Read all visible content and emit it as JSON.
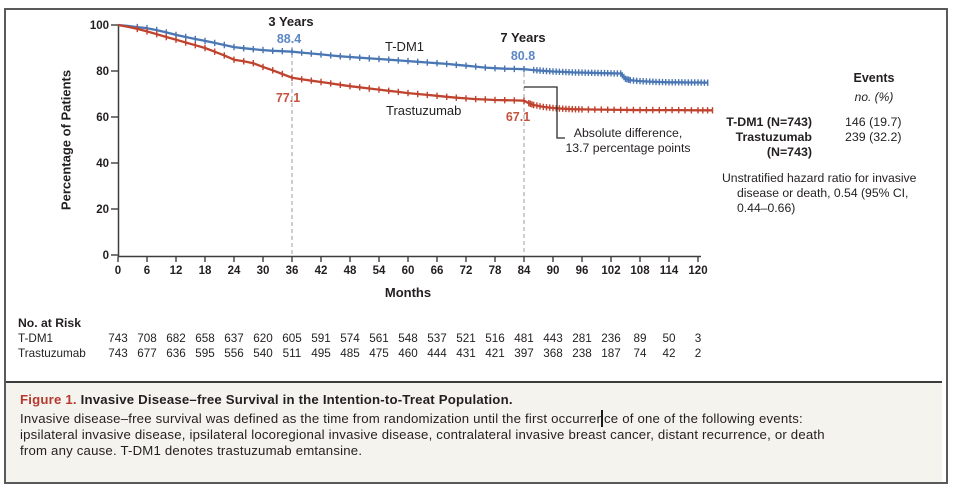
{
  "colors": {
    "curve_blue": "#4a77b4",
    "curve_red": "#c0432f",
    "label_blue": "#5d87c4",
    "label_red": "#c5523e",
    "dashed": "#b5b5b5",
    "axis": "#3d3d3f",
    "caption_label": "#b5392f",
    "caption_bg": "#f4f3ee"
  },
  "chart_data": {
    "type": "line",
    "subtype": "kaplan-meier-survival",
    "xlabel": "Months",
    "ylabel": "Percentage of Patients",
    "xlim": [
      0,
      120
    ],
    "ylim": [
      0,
      100
    ],
    "x_ticks": [
      0,
      6,
      12,
      18,
      24,
      30,
      36,
      42,
      48,
      54,
      60,
      66,
      72,
      78,
      84,
      90,
      96,
      102,
      108,
      114,
      120
    ],
    "y_ticks": [
      100,
      80,
      60,
      40,
      20,
      0
    ],
    "grid": false,
    "series": [
      {
        "name": "T-DM1",
        "color": "#4a77b4",
        "points": [
          [
            0,
            100
          ],
          [
            2,
            99.6
          ],
          [
            4,
            99.1
          ],
          [
            6,
            98.6
          ],
          [
            8,
            97.8
          ],
          [
            10,
            96.8
          ],
          [
            12,
            95.7
          ],
          [
            14,
            94.8
          ],
          [
            16,
            93.9
          ],
          [
            18,
            93.1
          ],
          [
            20,
            92.2
          ],
          [
            22,
            91.3
          ],
          [
            24,
            90.4
          ],
          [
            26,
            89.9
          ],
          [
            28,
            89.5
          ],
          [
            30,
            89.1
          ],
          [
            32,
            88.8
          ],
          [
            34,
            88.6
          ],
          [
            36,
            88.4
          ],
          [
            38,
            88.0
          ],
          [
            40,
            87.6
          ],
          [
            42,
            87.2
          ],
          [
            44,
            86.8
          ],
          [
            46,
            86.4
          ],
          [
            48,
            86.1
          ],
          [
            50,
            85.8
          ],
          [
            52,
            85.5
          ],
          [
            54,
            85.2
          ],
          [
            56,
            84.9
          ],
          [
            58,
            84.6
          ],
          [
            60,
            84.3
          ],
          [
            62,
            84.0
          ],
          [
            64,
            83.7
          ],
          [
            66,
            83.4
          ],
          [
            68,
            83.1
          ],
          [
            70,
            82.7
          ],
          [
            72,
            82.3
          ],
          [
            74,
            81.9
          ],
          [
            76,
            81.5
          ],
          [
            78,
            81.2
          ],
          [
            80,
            81.0
          ],
          [
            82,
            80.9
          ],
          [
            84,
            80.8
          ],
          [
            86,
            80.4
          ],
          [
            88,
            80.1
          ],
          [
            90,
            79.8
          ],
          [
            92,
            79.6
          ],
          [
            94,
            79.4
          ],
          [
            96,
            79.3
          ],
          [
            98,
            79.2
          ],
          [
            100,
            79.1
          ],
          [
            102,
            79.0
          ],
          [
            104,
            78.9
          ],
          [
            105,
            76.6
          ],
          [
            106,
            76.0
          ],
          [
            108,
            75.6
          ],
          [
            110,
            75.4
          ],
          [
            112,
            75.2
          ],
          [
            114,
            75.1
          ],
          [
            116,
            75.1
          ],
          [
            118,
            75.0
          ],
          [
            120,
            75.0
          ],
          [
            122,
            74.9
          ]
        ]
      },
      {
        "name": "Trastuzumab",
        "color": "#c0432f",
        "points": [
          [
            0,
            100
          ],
          [
            2,
            99.2
          ],
          [
            4,
            98.3
          ],
          [
            6,
            97.2
          ],
          [
            8,
            96.0
          ],
          [
            10,
            94.8
          ],
          [
            12,
            93.6
          ],
          [
            14,
            92.4
          ],
          [
            16,
            91.2
          ],
          [
            18,
            90.0
          ],
          [
            20,
            88.4
          ],
          [
            22,
            86.8
          ],
          [
            24,
            84.9
          ],
          [
            26,
            84.2
          ],
          [
            28,
            83.4
          ],
          [
            30,
            81.8
          ],
          [
            32,
            80.3
          ],
          [
            34,
            78.7
          ],
          [
            36,
            77.1
          ],
          [
            38,
            76.4
          ],
          [
            40,
            75.8
          ],
          [
            42,
            75.2
          ],
          [
            44,
            74.6
          ],
          [
            46,
            74.0
          ],
          [
            48,
            73.4
          ],
          [
            50,
            72.9
          ],
          [
            52,
            72.4
          ],
          [
            54,
            71.9
          ],
          [
            56,
            71.4
          ],
          [
            58,
            70.9
          ],
          [
            60,
            70.4
          ],
          [
            62,
            70.0
          ],
          [
            64,
            69.6
          ],
          [
            66,
            69.2
          ],
          [
            68,
            68.8
          ],
          [
            70,
            68.4
          ],
          [
            72,
            68.1
          ],
          [
            74,
            67.8
          ],
          [
            76,
            67.6
          ],
          [
            78,
            67.4
          ],
          [
            80,
            67.3
          ],
          [
            82,
            67.2
          ],
          [
            84,
            67.1
          ],
          [
            85,
            66.0
          ],
          [
            86,
            65.2
          ],
          [
            88,
            64.4
          ],
          [
            90,
            63.9
          ],
          [
            92,
            63.6
          ],
          [
            94,
            63.4
          ],
          [
            96,
            63.3
          ],
          [
            100,
            63.2
          ],
          [
            104,
            63.1
          ],
          [
            108,
            63.0
          ],
          [
            112,
            63.0
          ],
          [
            116,
            63.0
          ],
          [
            120,
            62.9
          ],
          [
            123,
            62.9
          ]
        ]
      }
    ],
    "annotations": {
      "three_years": {
        "label": "3 Years",
        "month": 36,
        "tdm1_value": "88.4",
        "trastuzumab_value": "77.1"
      },
      "seven_years": {
        "label": "7 Years",
        "month": 84,
        "tdm1_value": "80.8",
        "trastuzumab_value": "67.1"
      },
      "difference": {
        "line1": "Absolute difference,",
        "line2": "13.7 percentage points"
      }
    }
  },
  "events_panel": {
    "header": "Events",
    "unit": "no. (%)",
    "rows": [
      {
        "label": "T-DM1 (N=743)",
        "value": "146 (19.7)"
      },
      {
        "label": "Trastuzumab",
        "label2": "(N=743)",
        "value": "239 (32.2)"
      }
    ],
    "hazard_lines": [
      "Unstratified hazard ratio for invasive",
      "disease or death, 0.54 (95% CI,",
      "0.44–0.66)"
    ]
  },
  "risk_table": {
    "heading": "No. at Risk",
    "rows": [
      {
        "label": "T-DM1",
        "counts": [
          "743",
          "708",
          "682",
          "658",
          "637",
          "620",
          "605",
          "591",
          "574",
          "561",
          "548",
          "537",
          "521",
          "516",
          "481",
          "443",
          "281",
          "236",
          "89",
          "50",
          "3"
        ]
      },
      {
        "label": "Trastuzumab",
        "counts": [
          "743",
          "677",
          "636",
          "595",
          "556",
          "540",
          "511",
          "495",
          "485",
          "475",
          "460",
          "444",
          "431",
          "421",
          "397",
          "368",
          "238",
          "187",
          "74",
          "42",
          "2"
        ]
      }
    ]
  },
  "caption": {
    "label": "Figure 1.",
    "title": "Invasive Disease–free Survival in the Intention-to-Treat Population.",
    "body_lines": [
      "Invasive disease–free survival was defined as the time from randomization until the first occurrence of one of the following events:",
      "ipsilateral invasive disease, ipsilateral locoregional invasive disease, contralateral invasive breast cancer, distant recurrence, or death",
      "from any cause. T-DM1 denotes trastuzumab emtansine."
    ]
  }
}
